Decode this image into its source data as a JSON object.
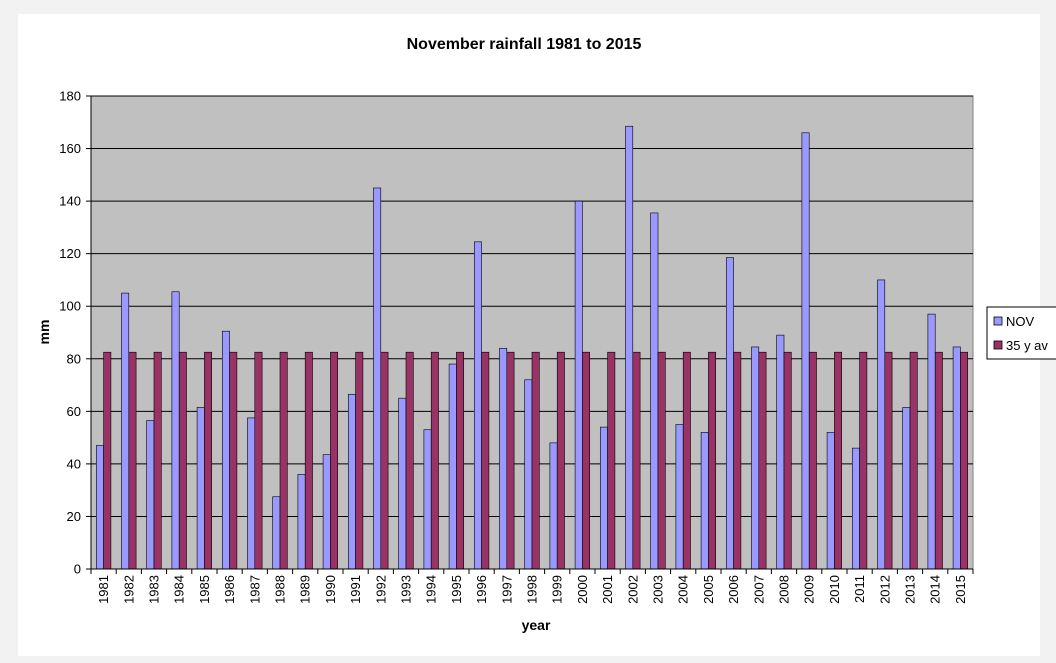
{
  "colors": {
    "plot_background": "#c0c0c0",
    "nov": "#9999ff",
    "avg": "#993366",
    "gridline": "#000000"
  },
  "chart_data": {
    "type": "bar",
    "title": "November rainfall 1981 to 2015",
    "xlabel": "year",
    "ylabel": "mm",
    "ylim": [
      0,
      180
    ],
    "yticks": [
      0,
      20,
      40,
      60,
      80,
      100,
      120,
      140,
      160,
      180
    ],
    "grid": true,
    "legend_position": "right",
    "categories": [
      "1981",
      "1982",
      "1983",
      "1984",
      "1985",
      "1986",
      "1987",
      "1988",
      "1989",
      "1990",
      "1991",
      "1992",
      "1993",
      "1994",
      "1995",
      "1996",
      "1997",
      "1998",
      "1999",
      "2000",
      "2001",
      "2002",
      "2003",
      "2004",
      "2005",
      "2006",
      "2007",
      "2008",
      "2009",
      "2010",
      "2011",
      "2012",
      "2013",
      "2014",
      "2015"
    ],
    "series": [
      {
        "name": "NOV",
        "color": "#9999ff",
        "values": [
          47,
          105,
          56.5,
          105.5,
          61.5,
          90.5,
          57.5,
          27.5,
          36,
          43.5,
          66.5,
          145,
          65,
          53,
          78,
          124.5,
          84,
          72,
          48,
          140,
          54,
          168.5,
          135.5,
          55,
          52,
          118.5,
          84.5,
          89,
          166,
          52,
          46,
          110,
          61.5,
          97,
          84.5
        ]
      },
      {
        "name": "35 y av",
        "color": "#993366",
        "values": [
          82.5,
          82.5,
          82.5,
          82.5,
          82.5,
          82.5,
          82.5,
          82.5,
          82.5,
          82.5,
          82.5,
          82.5,
          82.5,
          82.5,
          82.5,
          82.5,
          82.5,
          82.5,
          82.5,
          82.5,
          82.5,
          82.5,
          82.5,
          82.5,
          82.5,
          82.5,
          82.5,
          82.5,
          82.5,
          82.5,
          82.5,
          82.5,
          82.5,
          82.5,
          82.5
        ]
      }
    ]
  }
}
